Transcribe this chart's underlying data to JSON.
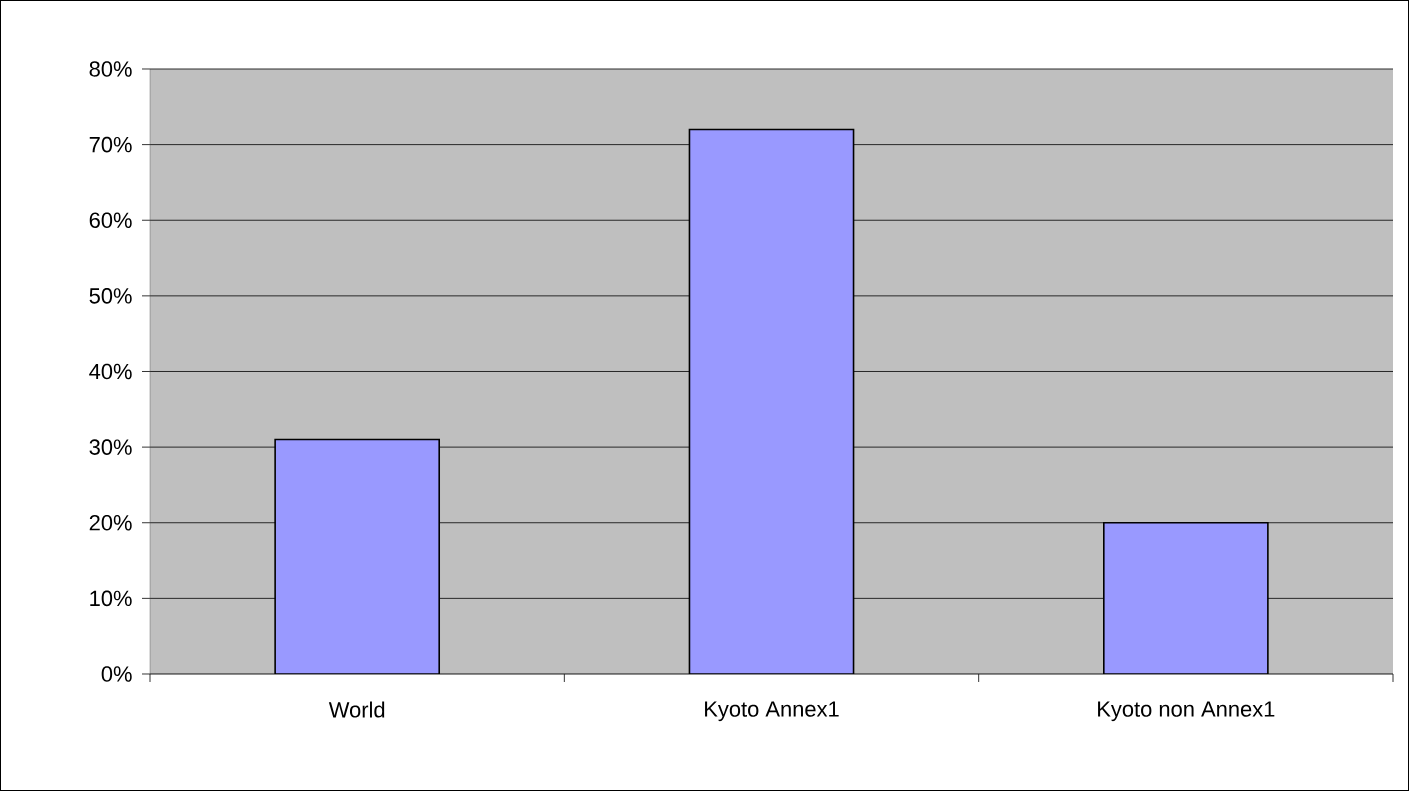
{
  "chart_data": {
    "type": "bar",
    "categories": [
      "World",
      "Kyoto Annex1",
      "Kyoto non Annex1"
    ],
    "values": [
      31,
      72,
      20
    ],
    "color": "#9999ff",
    "ylim": [
      0,
      80
    ],
    "yticks": [
      {
        "value": 0,
        "label": "0%"
      },
      {
        "value": 10,
        "label": "10%"
      },
      {
        "value": 20,
        "label": "20%"
      },
      {
        "value": 30,
        "label": "30%"
      },
      {
        "value": 40,
        "label": "40%"
      },
      {
        "value": 50,
        "label": "50%"
      },
      {
        "value": 60,
        "label": "60%"
      },
      {
        "value": 70,
        "label": "70%"
      },
      {
        "value": 80,
        "label": "80%"
      }
    ],
    "grid": "y"
  }
}
